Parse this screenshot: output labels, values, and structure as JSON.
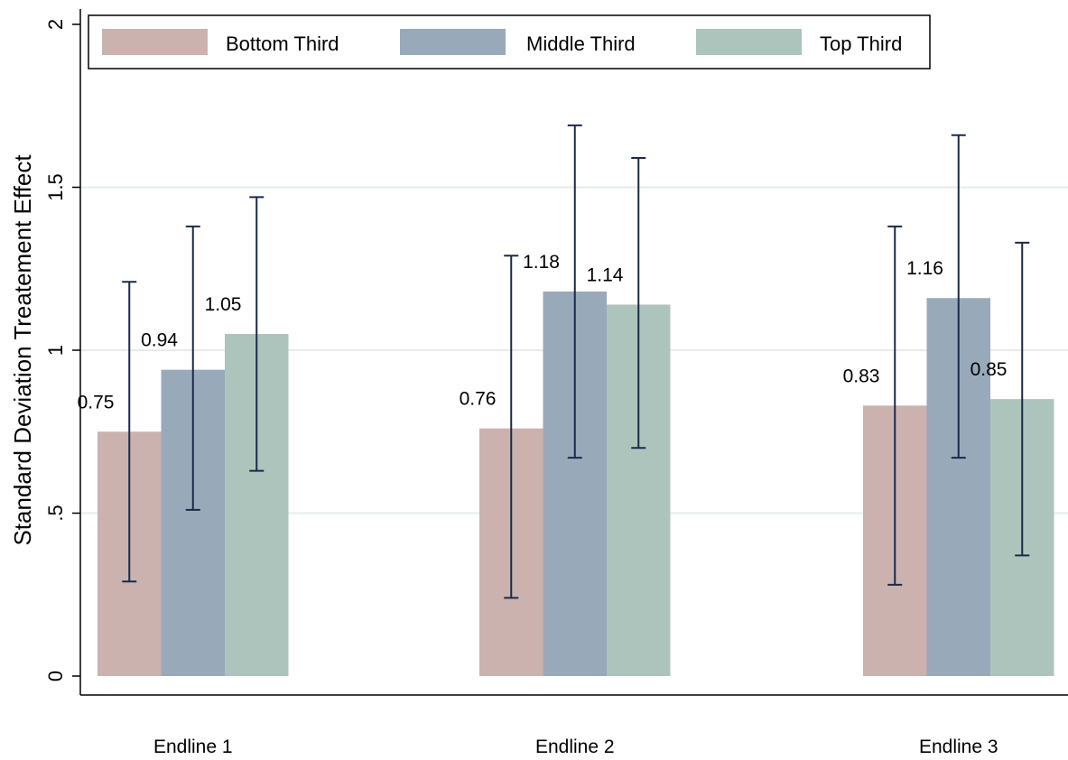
{
  "chart_data": {
    "type": "bar",
    "categories": [
      "Endline 1",
      "Endline 2",
      "Endline 3"
    ],
    "series": [
      {
        "name": "Bottom Third",
        "values": [
          0.75,
          0.76,
          0.83
        ],
        "ci_low": [
          0.29,
          0.24,
          0.28
        ],
        "ci_high": [
          1.21,
          1.29,
          1.38
        ],
        "value_labels": [
          "0.75",
          "0.76",
          "0.83"
        ]
      },
      {
        "name": "Middle Third",
        "values": [
          0.94,
          1.18,
          1.16
        ],
        "ci_low": [
          0.51,
          0.67,
          0.67
        ],
        "ci_high": [
          1.38,
          1.69,
          1.66
        ],
        "value_labels": [
          "0.94",
          "1.18",
          "1.16"
        ]
      },
      {
        "name": "Top Third",
        "values": [
          1.05,
          1.14,
          0.85
        ],
        "ci_low": [
          0.63,
          0.7,
          0.37
        ],
        "ci_high": [
          1.47,
          1.59,
          1.33
        ],
        "value_labels": [
          "1.05",
          "1.14",
          "0.85"
        ]
      }
    ],
    "colors": [
      "#cbb2ae",
      "#98aaba",
      "#adc4bc"
    ],
    "errorbar_color": "#1a2a4a",
    "gridline_color": "#e4ecec",
    "ylabel": "Standard Deviation Treatement Effect",
    "xlabel": "",
    "ylim": [
      0,
      2
    ],
    "yticks": [
      0,
      0.5,
      1,
      1.5,
      2
    ],
    "ytick_labels": [
      "0",
      ".5",
      "1",
      "1.5",
      "2"
    ],
    "grid": true,
    "legend_position": "top"
  }
}
